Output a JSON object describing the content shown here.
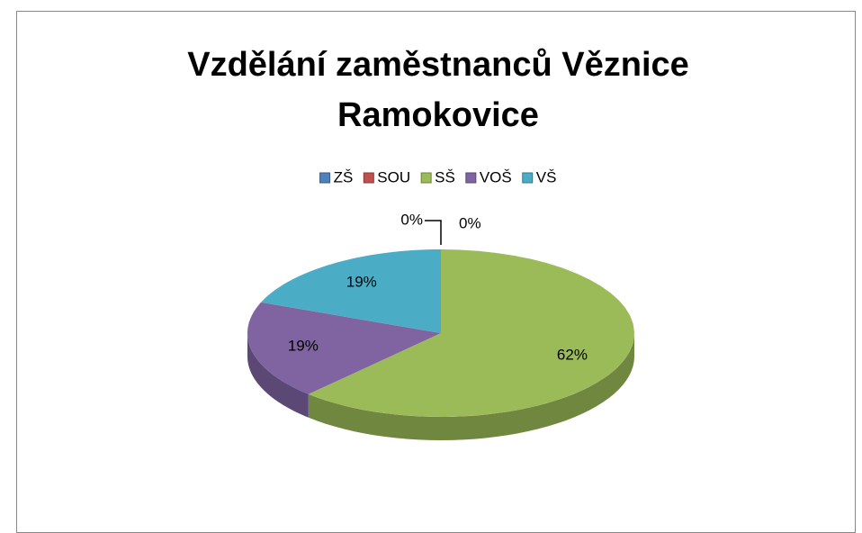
{
  "chart_data": {
    "type": "pie",
    "title": "Vzdělání zaměstnanců Věznice Ramokovice",
    "categories": [
      "ZŠ",
      "SOU",
      "SŠ",
      "VOŠ",
      "VŠ"
    ],
    "values": [
      0,
      0,
      62,
      19,
      19
    ],
    "value_labels": [
      "0%",
      "0%",
      "62%",
      "19%",
      "19%"
    ],
    "colors": [
      "#4f81bd",
      "#c0504d",
      "#9bbb59",
      "#8064a2",
      "#4bacc6"
    ],
    "legend": "top"
  }
}
